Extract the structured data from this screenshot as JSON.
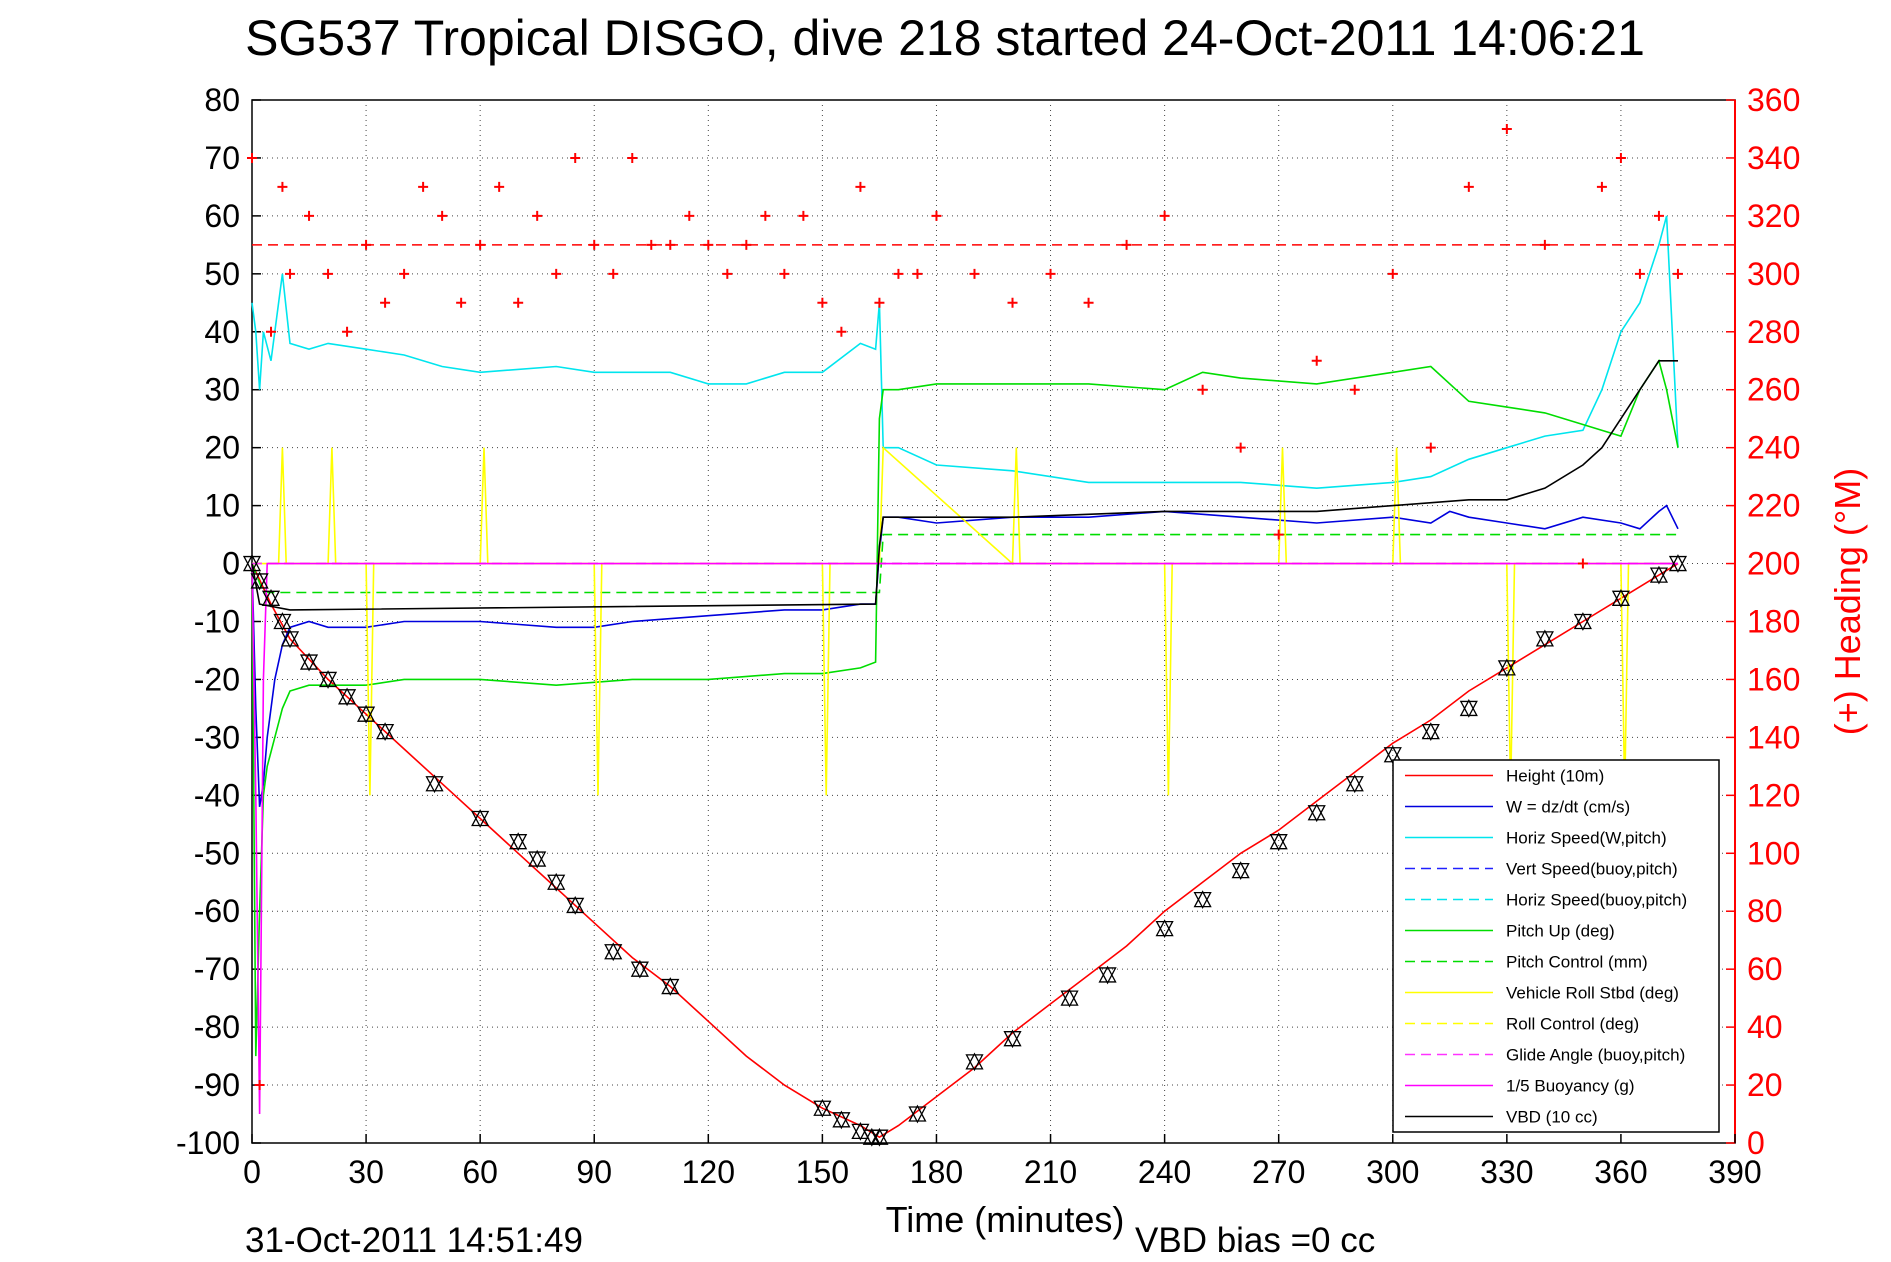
{
  "chart_data": {
    "type": "line",
    "title": "SG537 Tropical DISGO, dive 218 started 24-Oct-2011 14:06:21",
    "xlabel": "Time (minutes)",
    "ylabel_right": "(+) Heading (°M)",
    "footer_date": "31-Oct-2011 14:51:49",
    "footer_vbd": "VBD bias =0 cc",
    "xlim": [
      0,
      390
    ],
    "ylim": [
      -100,
      80
    ],
    "ylim_right": [
      0,
      360
    ],
    "x_ticks": [
      "0",
      "30",
      "60",
      "90",
      "120",
      "150",
      "180",
      "210",
      "240",
      "270",
      "300",
      "330",
      "360",
      "390"
    ],
    "y_ticks": [
      "80",
      "70",
      "60",
      "50",
      "40",
      "30",
      "20",
      "10",
      "0",
      "-10",
      "-20",
      "-30",
      "-40",
      "-50",
      "-60",
      "-70",
      "-80",
      "-90",
      "-100"
    ],
    "y_ticks_right": [
      "360",
      "340",
      "320",
      "300",
      "280",
      "260",
      "240",
      "220",
      "200",
      "180",
      "160",
      "140",
      "120",
      "100",
      "80",
      "60",
      "40",
      "20",
      "0"
    ],
    "grid": true,
    "legend_placement": "lower-right",
    "series": [
      {
        "name": "Height (10m)",
        "color": "#ff0000",
        "style": "solid",
        "x": [
          0,
          5,
          10,
          20,
          30,
          40,
          50,
          60,
          70,
          80,
          90,
          100,
          110,
          120,
          130,
          140,
          150,
          160,
          165,
          170,
          180,
          190,
          200,
          210,
          220,
          230,
          240,
          250,
          260,
          270,
          280,
          290,
          300,
          310,
          320,
          330,
          340,
          350,
          360,
          370,
          375
        ],
        "y": [
          0,
          -7,
          -13,
          -20,
          -26,
          -32,
          -38,
          -44,
          -50,
          -56,
          -62,
          -68,
          -73,
          -79,
          -85,
          -90,
          -94,
          -97,
          -99,
          -97,
          -92,
          -87,
          -81,
          -76,
          -71,
          -66,
          -60,
          -55,
          -50,
          -46,
          -41,
          -36,
          -31,
          -27,
          -22,
          -18,
          -14,
          -10,
          -6,
          -2,
          0
        ]
      },
      {
        "name": "W = dz/dt (cm/s)",
        "color": "#0000dd",
        "style": "solid",
        "x": [
          0,
          1,
          2,
          3,
          4,
          6,
          8,
          10,
          15,
          20,
          30,
          40,
          60,
          80,
          90,
          100,
          120,
          140,
          150,
          160,
          164,
          165,
          166,
          170,
          180,
          200,
          220,
          240,
          260,
          280,
          300,
          310,
          315,
          320,
          330,
          340,
          350,
          360,
          365,
          370,
          372,
          375
        ],
        "y": [
          0,
          -25,
          -42,
          -38,
          -30,
          -20,
          -14,
          -11,
          -10,
          -11,
          -11,
          -10,
          -10,
          -11,
          -11,
          -10,
          -9,
          -8,
          -8,
          -7,
          -7,
          2,
          8,
          8,
          7,
          8,
          8,
          9,
          8,
          7,
          8,
          7,
          9,
          8,
          7,
          6,
          8,
          7,
          6,
          9,
          10,
          6
        ]
      },
      {
        "name": "Horiz Speed(W,pitch)",
        "color": "#00e5ee",
        "style": "solid",
        "x": [
          0,
          1,
          2,
          3,
          5,
          8,
          10,
          15,
          20,
          30,
          40,
          50,
          60,
          80,
          90,
          100,
          110,
          120,
          130,
          140,
          150,
          160,
          164,
          165,
          166,
          170,
          180,
          200,
          220,
          240,
          260,
          280,
          300,
          310,
          320,
          330,
          340,
          350,
          355,
          360,
          365,
          370,
          372,
          375
        ],
        "y": [
          45,
          40,
          30,
          40,
          35,
          50,
          38,
          37,
          38,
          37,
          36,
          34,
          33,
          34,
          33,
          33,
          33,
          31,
          31,
          33,
          33,
          38,
          37,
          45,
          20,
          20,
          17,
          16,
          14,
          14,
          14,
          13,
          14,
          15,
          18,
          20,
          22,
          23,
          30,
          40,
          45,
          55,
          60,
          20
        ]
      },
      {
        "name": "Vert Speed(buoy,pitch)",
        "color": "#2020ff",
        "style": "dashed",
        "x": [
          0,
          375
        ],
        "y": [
          0,
          0
        ]
      },
      {
        "name": "Horiz Speed(buoy,pitch)",
        "color": "#00e5ee",
        "style": "dashed",
        "x": [
          0,
          375
        ],
        "y": [
          0,
          0
        ]
      },
      {
        "name": "Pitch Up (deg)",
        "color": "#00dd00",
        "style": "solid",
        "x": [
          0,
          1,
          2,
          3,
          4,
          6,
          8,
          10,
          15,
          20,
          30,
          40,
          60,
          80,
          100,
          120,
          140,
          150,
          160,
          164,
          165,
          166,
          170,
          180,
          200,
          220,
          240,
          250,
          260,
          280,
          300,
          310,
          320,
          330,
          340,
          350,
          360,
          365,
          370,
          372,
          375
        ],
        "y": [
          0,
          -85,
          -60,
          -40,
          -35,
          -30,
          -25,
          -22,
          -21,
          -21,
          -21,
          -20,
          -20,
          -21,
          -20,
          -20,
          -19,
          -19,
          -18,
          -17,
          25,
          30,
          30,
          31,
          31,
          31,
          30,
          33,
          32,
          31,
          33,
          34,
          28,
          27,
          26,
          24,
          22,
          30,
          35,
          30,
          20
        ]
      },
      {
        "name": "Pitch Control (mm)",
        "color": "#00dd00",
        "style": "dashed",
        "x": [
          0,
          3,
          165,
          166,
          375
        ],
        "y": [
          0,
          -5,
          -5,
          5,
          5
        ]
      },
      {
        "name": "Vehicle Roll Stbd (deg)",
        "color": "#ffff00",
        "style": "solid",
        "x": [
          0,
          7,
          8,
          9,
          20,
          21,
          22,
          30,
          31,
          32,
          60,
          61,
          62,
          90,
          91,
          92,
          150,
          151,
          152,
          165,
          166,
          200,
          201,
          202,
          240,
          241,
          242,
          270,
          271,
          272,
          300,
          301,
          302,
          330,
          331,
          332,
          360,
          361,
          362,
          375
        ],
        "y": [
          0,
          0,
          20,
          0,
          0,
          20,
          0,
          0,
          -40,
          0,
          0,
          20,
          0,
          0,
          -40,
          0,
          0,
          -40,
          0,
          0,
          20,
          0,
          20,
          0,
          0,
          -40,
          0,
          0,
          20,
          0,
          0,
          20,
          0,
          0,
          -40,
          0,
          0,
          -40,
          0,
          0
        ]
      },
      {
        "name": "Roll Control (deg)",
        "color": "#ffff00",
        "style": "dashed",
        "x": [
          0,
          375
        ],
        "y": [
          0,
          0
        ]
      },
      {
        "name": "Glide Angle (buoy,pitch)",
        "color": "#ff33ff",
        "style": "dashed",
        "x": [
          0,
          375
        ],
        "y": [
          0,
          0
        ]
      },
      {
        "name": "1/5 Buoyancy (g)",
        "color": "#ff00ff",
        "style": "solid",
        "x": [
          0,
          1,
          2,
          3,
          4,
          375
        ],
        "y": [
          0,
          -40,
          -95,
          -20,
          0,
          0
        ]
      },
      {
        "name": "VBD (10 cc)",
        "color": "#000000",
        "style": "solid",
        "x": [
          0,
          2,
          10,
          164,
          165,
          166,
          200,
          240,
          280,
          320,
          330,
          340,
          350,
          355,
          360,
          365,
          370,
          375
        ],
        "y": [
          0,
          -7,
          -8,
          -7,
          3,
          8,
          8,
          9,
          9,
          11,
          11,
          13,
          17,
          20,
          25,
          30,
          35,
          35
        ]
      }
    ],
    "heading": {
      "name": "Heading",
      "color": "#ff0000",
      "marker": "+",
      "reference": 310,
      "x": [
        0,
        2,
        5,
        8,
        10,
        15,
        20,
        25,
        30,
        35,
        40,
        45,
        50,
        55,
        60,
        65,
        70,
        75,
        80,
        85,
        90,
        95,
        100,
        105,
        110,
        115,
        120,
        125,
        130,
        135,
        140,
        145,
        150,
        155,
        160,
        165,
        170,
        175,
        180,
        190,
        200,
        210,
        220,
        230,
        240,
        250,
        260,
        270,
        280,
        290,
        300,
        310,
        320,
        330,
        340,
        350,
        355,
        360,
        365,
        370,
        375
      ],
      "y": [
        340,
        20,
        280,
        330,
        300,
        320,
        300,
        280,
        310,
        290,
        300,
        330,
        320,
        290,
        310,
        330,
        290,
        320,
        300,
        340,
        310,
        300,
        340,
        310,
        310,
        320,
        310,
        300,
        310,
        320,
        300,
        320,
        290,
        280,
        330,
        290,
        300,
        300,
        320,
        300,
        290,
        300,
        290,
        310,
        320,
        260,
        240,
        210,
        270,
        260,
        300,
        240,
        330,
        350,
        310,
        200,
        330,
        340,
        300,
        320,
        300
      ]
    },
    "markers": {
      "symbols": [
        "triangle-up",
        "triangle-down"
      ],
      "x": [
        0,
        2,
        5,
        8,
        10,
        15,
        20,
        25,
        30,
        35,
        48,
        60,
        70,
        75,
        80,
        85,
        95,
        102,
        110,
        150,
        155,
        160,
        163,
        165,
        175,
        190,
        200,
        215,
        225,
        240,
        250,
        260,
        270,
        280,
        290,
        300,
        310,
        320,
        330,
        340,
        350,
        360,
        370,
        375
      ],
      "y": [
        0,
        -3,
        -6,
        -10,
        -13,
        -17,
        -20,
        -23,
        -26,
        -29,
        -38,
        -44,
        -48,
        -51,
        -55,
        -59,
        -67,
        -70,
        -73,
        -94,
        -96,
        -98,
        -99,
        -99,
        -95,
        -86,
        -82,
        -75,
        -71,
        -63,
        -58,
        -53,
        -48,
        -43,
        -38,
        -33,
        -29,
        -25,
        -18,
        -13,
        -10,
        -6,
        -2,
        0
      ]
    }
  }
}
